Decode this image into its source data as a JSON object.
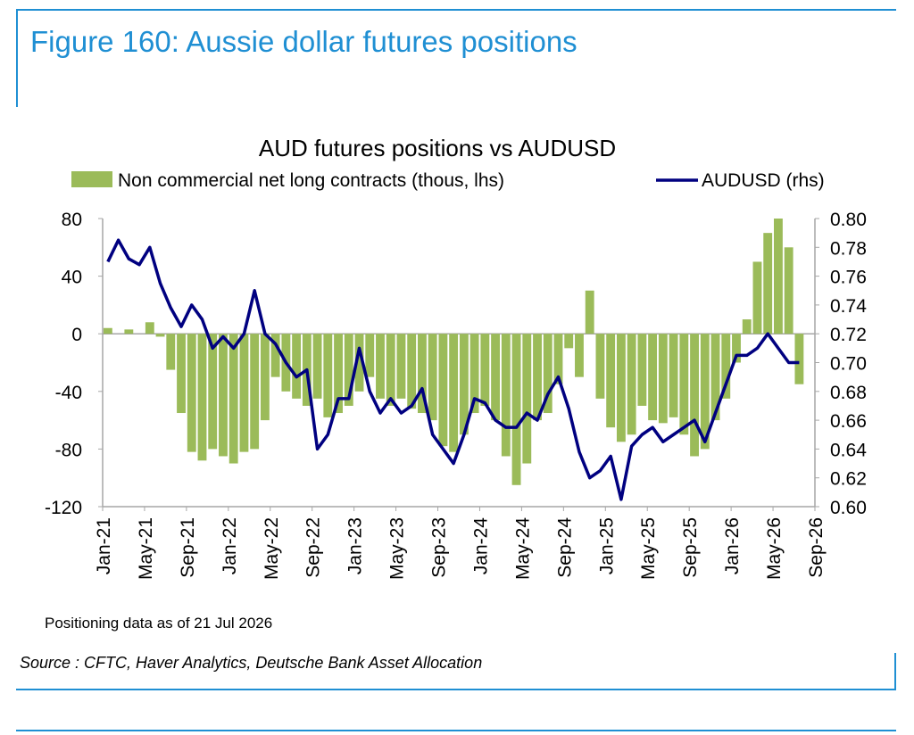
{
  "figure": {
    "title": "Figure 160: Aussie dollar futures positions",
    "source": "Source : CFTC, Haver Analytics, Deutsche Bank Asset Allocation"
  },
  "colors": {
    "accent": "#1f8fd3",
    "bars": "#9bbb59",
    "line": "#000080"
  },
  "chart_data": {
    "type": "bar",
    "title": "AUD futures positions  vs AUDUSD",
    "note": "Positioning data as of 21 Jul 2026",
    "legend": {
      "placement": "top"
    },
    "x": {
      "ticks": [
        "Jan-21",
        "May-21",
        "Sep-21",
        "Jan-22",
        "May-22",
        "Sep-22",
        "Jan-23",
        "May-23",
        "Sep-23",
        "Jan-24",
        "May-24",
        "Sep-24",
        "Jan-25",
        "May-25",
        "Sep-25",
        "Jan-26",
        "May-26",
        "Sep-26"
      ],
      "range": [
        "2021-01",
        "2026-09"
      ]
    },
    "y_left": {
      "ylim": [
        -120,
        80
      ],
      "ticks": [
        80,
        40,
        0,
        -40,
        -80,
        -120
      ]
    },
    "y_right": {
      "ylim": [
        0.6,
        0.8
      ],
      "ticks": [
        "0.80",
        "0.78",
        "0.76",
        "0.74",
        "0.72",
        "0.70",
        "0.68",
        "0.66",
        "0.64",
        "0.62",
        "0.60"
      ]
    },
    "series": [
      {
        "name": "Non commercial net long contracts (thous, lhs)",
        "type": "bar",
        "axis": "left",
        "x": [
          "2021-01",
          "2021-03",
          "2021-05",
          "2021-06",
          "2021-07",
          "2021-08",
          "2021-09",
          "2021-10",
          "2021-11",
          "2021-12",
          "2022-01",
          "2022-02",
          "2022-03",
          "2022-04",
          "2022-05",
          "2022-06",
          "2022-07",
          "2022-08",
          "2022-09",
          "2022-10",
          "2022-11",
          "2022-12",
          "2023-01",
          "2023-02",
          "2023-03",
          "2023-04",
          "2023-05",
          "2023-06",
          "2023-07",
          "2023-08",
          "2023-09",
          "2023-10",
          "2023-11",
          "2023-12",
          "2024-01",
          "2024-02",
          "2024-03",
          "2024-04",
          "2024-05",
          "2024-06",
          "2024-07",
          "2024-08",
          "2024-09",
          "2024-10",
          "2024-11",
          "2024-12",
          "2025-01",
          "2025-02",
          "2025-03",
          "2025-04",
          "2025-05",
          "2025-06",
          "2025-07",
          "2025-08",
          "2025-09",
          "2025-10",
          "2025-11",
          "2025-12",
          "2026-01",
          "2026-02",
          "2026-03",
          "2026-04",
          "2026-05",
          "2026-06",
          "2026-07"
        ],
        "values": [
          4,
          3,
          8,
          -2,
          -25,
          -55,
          -82,
          -88,
          -80,
          -85,
          -90,
          -82,
          -80,
          -60,
          -30,
          -40,
          -45,
          -50,
          -45,
          -58,
          -55,
          -50,
          -40,
          -30,
          -45,
          -50,
          -45,
          -52,
          -55,
          -60,
          -78,
          -82,
          -70,
          -55,
          -50,
          -60,
          -85,
          -105,
          -90,
          -60,
          -55,
          -35,
          -10,
          -30,
          30,
          -45,
          -65,
          -75,
          -70,
          -50,
          -60,
          -62,
          -58,
          -70,
          -85,
          -80,
          -60,
          -45,
          -20,
          10,
          50,
          70,
          80,
          60,
          -35
        ]
      },
      {
        "name": "AUDUSD (rhs)",
        "type": "line",
        "axis": "right",
        "x": [
          "2021-01",
          "2021-02",
          "2021-03",
          "2021-04",
          "2021-05",
          "2021-06",
          "2021-07",
          "2021-08",
          "2021-09",
          "2021-10",
          "2021-11",
          "2021-12",
          "2022-01",
          "2022-02",
          "2022-03",
          "2022-04",
          "2022-05",
          "2022-06",
          "2022-07",
          "2022-08",
          "2022-09",
          "2022-10",
          "2022-11",
          "2022-12",
          "2023-01",
          "2023-02",
          "2023-03",
          "2023-04",
          "2023-05",
          "2023-06",
          "2023-07",
          "2023-08",
          "2023-09",
          "2023-10",
          "2023-11",
          "2023-12",
          "2024-01",
          "2024-02",
          "2024-03",
          "2024-04",
          "2024-05",
          "2024-06",
          "2024-07",
          "2024-08",
          "2024-09",
          "2024-10",
          "2024-11",
          "2024-12",
          "2025-01",
          "2025-02",
          "2025-03",
          "2025-04",
          "2025-05",
          "2025-06",
          "2025-07",
          "2025-08",
          "2025-09",
          "2025-10",
          "2025-11",
          "2025-12",
          "2026-01",
          "2026-02",
          "2026-03",
          "2026-04",
          "2026-05",
          "2026-06",
          "2026-07"
        ],
        "values": [
          0.77,
          0.785,
          0.772,
          0.768,
          0.78,
          0.755,
          0.738,
          0.725,
          0.74,
          0.73,
          0.71,
          0.718,
          0.71,
          0.72,
          0.75,
          0.72,
          0.713,
          0.7,
          0.69,
          0.695,
          0.64,
          0.65,
          0.675,
          0.675,
          0.71,
          0.68,
          0.665,
          0.675,
          0.665,
          0.67,
          0.682,
          0.65,
          0.64,
          0.63,
          0.65,
          0.675,
          0.672,
          0.66,
          0.655,
          0.655,
          0.665,
          0.66,
          0.678,
          0.69,
          0.668,
          0.638,
          0.62,
          0.625,
          0.635,
          0.605,
          0.642,
          0.65,
          0.655,
          0.645,
          0.65,
          0.655,
          0.66,
          0.645,
          0.665,
          0.685,
          0.705,
          0.705,
          0.71,
          0.72,
          0.71,
          0.7,
          0.7
        ]
      }
    ]
  }
}
